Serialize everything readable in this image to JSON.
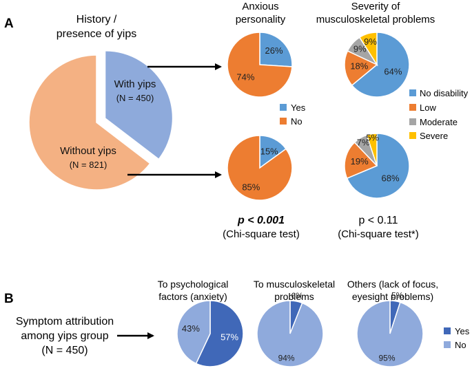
{
  "panel_labels": {
    "a": "A",
    "b": "B"
  },
  "colors": {
    "yes": "#5b9bd5",
    "no": "#ed7d31",
    "no_disability": "#5b9bd5",
    "low": "#ed7d31",
    "moderate": "#a5a5a5",
    "severe": "#ffc000",
    "with_yips": "#8eaadb",
    "without_yips": "#f4b183",
    "b_yes": "#4068b8",
    "b_no": "#8faadc"
  },
  "panel_a": {
    "main_title": [
      "History /",
      "presence of yips"
    ],
    "anxious_title": [
      "Anxious",
      "personality"
    ],
    "severity_title": [
      "Severity of",
      "musculoskeletal problems"
    ],
    "with_yips_label": "With yips",
    "with_yips_n": "(N = 450)",
    "without_yips_label": "Without yips",
    "without_yips_n": "(N = 821)",
    "anxious_legend": [
      "Yes",
      "No"
    ],
    "severity_legend": [
      "No disability",
      "Low",
      "Moderate",
      "Severe"
    ],
    "stat_left_p": "p < 0.001",
    "stat_left_test": "(Chi-square test)",
    "stat_right_p": "p < 0.11",
    "stat_right_test": "(Chi-square test*)"
  },
  "panel_b": {
    "attribution_label": [
      "Symptom attribution",
      "among yips group",
      "(N = 450)"
    ],
    "titles": [
      [
        "To psychological",
        "factors (anxiety)"
      ],
      [
        "To musculoskeletal",
        "problems"
      ],
      [
        "Others (lack of focus,",
        "eyesight problems)"
      ]
    ],
    "legend": [
      "Yes",
      "No"
    ]
  },
  "chart_data": [
    {
      "type": "pie",
      "title": "History / presence of yips",
      "labels": [
        "With yips",
        "Without yips"
      ],
      "values": [
        450,
        821
      ]
    },
    {
      "type": "pie",
      "title": "Anxious personality — with yips",
      "labels": [
        "Yes",
        "No"
      ],
      "values": [
        26,
        74
      ]
    },
    {
      "type": "pie",
      "title": "Anxious personality — without yips",
      "labels": [
        "Yes",
        "No"
      ],
      "values": [
        15,
        85
      ]
    },
    {
      "type": "pie",
      "title": "Severity of musculoskeletal problems — with yips",
      "labels": [
        "No disability",
        "Low",
        "Moderate",
        "Severe"
      ],
      "values": [
        64,
        18,
        9,
        9
      ]
    },
    {
      "type": "pie",
      "title": "Severity of musculoskeletal problems — without yips",
      "labels": [
        "No disability",
        "Low",
        "Moderate",
        "Severe"
      ],
      "values": [
        68,
        19,
        7,
        5
      ]
    },
    {
      "type": "pie",
      "title": "To psychological factors (anxiety)",
      "labels": [
        "Yes",
        "No"
      ],
      "values": [
        57,
        43
      ]
    },
    {
      "type": "pie",
      "title": "To musculoskeletal problems",
      "labels": [
        "Yes",
        "No"
      ],
      "values": [
        6,
        94
      ]
    },
    {
      "type": "pie",
      "title": "Others (lack of focus, eyesight problems)",
      "labels": [
        "Yes",
        "No"
      ],
      "values": [
        5,
        95
      ]
    }
  ]
}
